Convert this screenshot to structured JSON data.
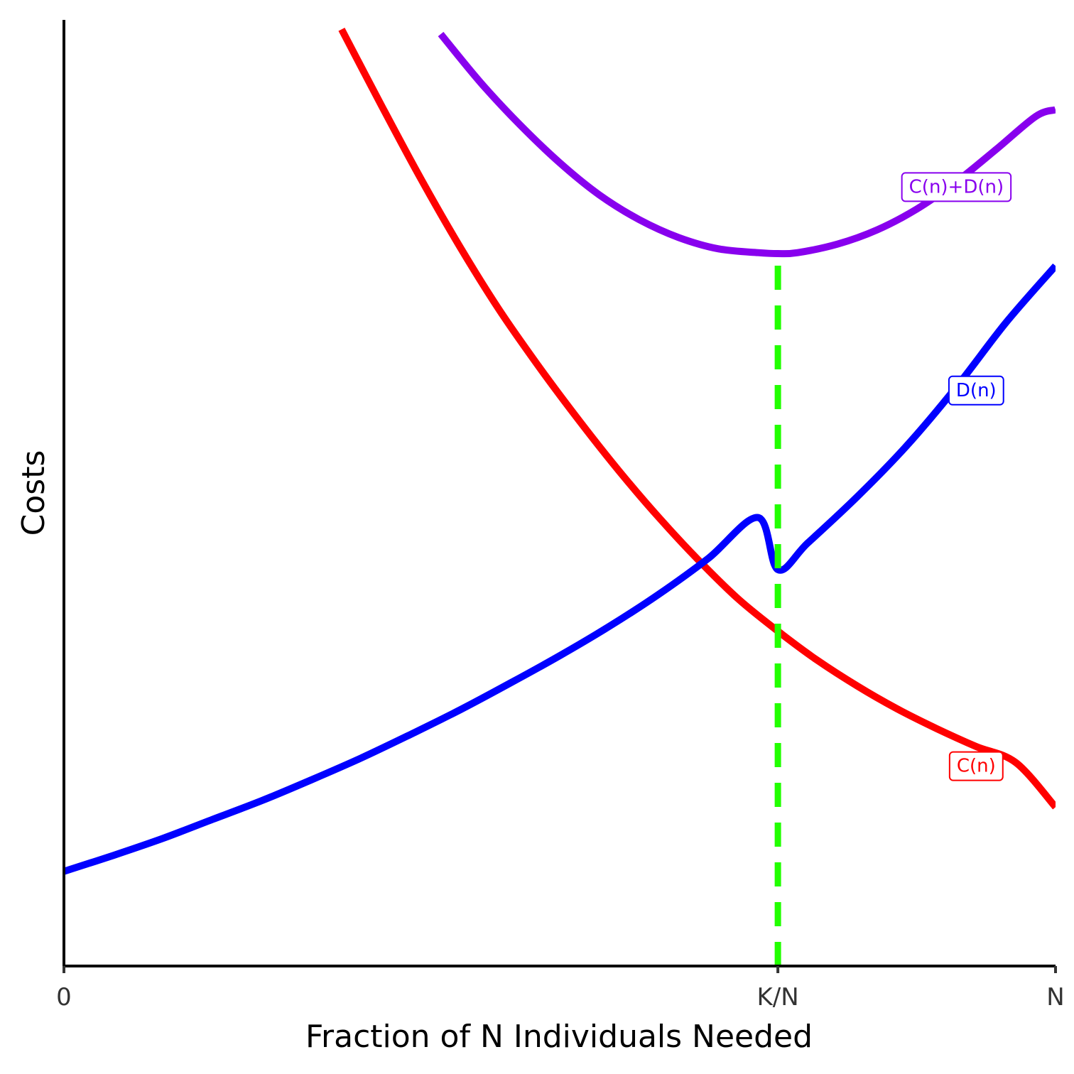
{
  "chart_data": {
    "type": "line",
    "title": "",
    "xlabel": "Fraction of N Individuals Needed",
    "ylabel": "Costs",
    "xlim": [
      0,
      1
    ],
    "ylim": [
      0,
      1
    ],
    "x_ticks": [
      {
        "value": 0,
        "label": "0"
      },
      {
        "value": 0.72,
        "label": "K/N"
      },
      {
        "value": 1,
        "label": "N"
      }
    ],
    "y_ticks": [],
    "grid": false,
    "legend": "none",
    "series": [
      {
        "name": "C(n)",
        "color": "#ff0000",
        "x": [
          0.28,
          0.32,
          0.36,
          0.4,
          0.44,
          0.48,
          0.52,
          0.56,
          0.6,
          0.64,
          0.68,
          0.72,
          0.76,
          0.8,
          0.84,
          0.88,
          0.92,
          0.96,
          1.0
        ],
        "y": [
          0.99,
          0.91,
          0.832,
          0.759,
          0.692,
          0.632,
          0.576,
          0.523,
          0.474,
          0.429,
          0.388,
          0.354,
          0.323,
          0.296,
          0.272,
          0.251,
          0.232,
          0.215,
          0.168
        ]
      },
      {
        "name": "D(n)",
        "color": "#0000ff",
        "x": [
          0.0,
          0.05,
          0.1,
          0.15,
          0.2,
          0.25,
          0.3,
          0.35,
          0.4,
          0.45,
          0.5,
          0.55,
          0.6,
          0.65,
          0.7,
          0.72,
          0.75,
          0.8,
          0.85,
          0.9,
          0.95,
          1.0
        ],
        "y": [
          0.1,
          0.117,
          0.135,
          0.155,
          0.175,
          0.197,
          0.22,
          0.245,
          0.271,
          0.299,
          0.328,
          0.359,
          0.393,
          0.431,
          0.474,
          0.419,
          0.447,
          0.496,
          0.55,
          0.612,
          0.68,
          0.74
        ]
      },
      {
        "name": "C(n)+D(n)",
        "color": "#8800ee",
        "x": [
          0.38,
          0.42,
          0.46,
          0.5,
          0.54,
          0.58,
          0.62,
          0.66,
          0.7,
          0.72,
          0.74,
          0.78,
          0.82,
          0.86,
          0.9,
          0.94,
          0.98,
          1.0
        ],
        "y": [
          0.985,
          0.934,
          0.889,
          0.849,
          0.815,
          0.789,
          0.77,
          0.758,
          0.754,
          0.753,
          0.754,
          0.763,
          0.778,
          0.8,
          0.829,
          0.863,
          0.898,
          0.905
        ]
      }
    ],
    "reference_lines": [
      {
        "type": "vertical",
        "x": 0.72,
        "color": "#22ff00",
        "style": "dashed"
      }
    ],
    "annotations": [
      {
        "text": "C(n)+D(n)",
        "series": "C(n)+D(n)",
        "x": 0.9,
        "y": 0.824
      },
      {
        "text": "D(n)",
        "series": "D(n)",
        "x": 0.92,
        "y": 0.609
      },
      {
        "text": "C(n)",
        "series": "C(n)",
        "x": 0.92,
        "y": 0.212
      }
    ]
  }
}
